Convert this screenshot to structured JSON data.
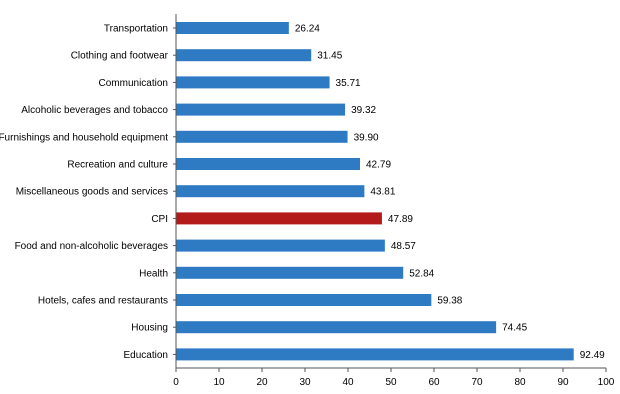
{
  "chart_data": {
    "type": "bar",
    "orientation": "horizontal",
    "categories": [
      "Transportation",
      "Clothing and footwear",
      "Communication",
      "Alcoholic beverages and tobacco",
      "Furnishings and household equipment",
      "Recreation and culture",
      "Miscellaneous goods and services",
      "CPI",
      "Food and non-alcoholic beverages",
      "Health",
      "Hotels, cafes and restaurants",
      "Housing",
      "Education"
    ],
    "values": [
      26.24,
      31.45,
      35.71,
      39.32,
      39.9,
      42.79,
      43.81,
      47.89,
      48.57,
      52.84,
      59.38,
      74.45,
      92.49
    ],
    "value_labels": [
      "26.24",
      "31.45",
      "35.71",
      "39.32",
      "39.90",
      "42.79",
      "43.81",
      "47.89",
      "48.57",
      "52.84",
      "59.38",
      "74.45",
      "92.49"
    ],
    "xlim": [
      0,
      100
    ],
    "xticks": [
      0,
      10,
      20,
      30,
      40,
      50,
      60,
      70,
      80,
      90,
      100
    ],
    "grid": false,
    "bar_color": "#2e7bc4",
    "highlight": {
      "category": "CPI",
      "color": "#b31b1b"
    }
  }
}
